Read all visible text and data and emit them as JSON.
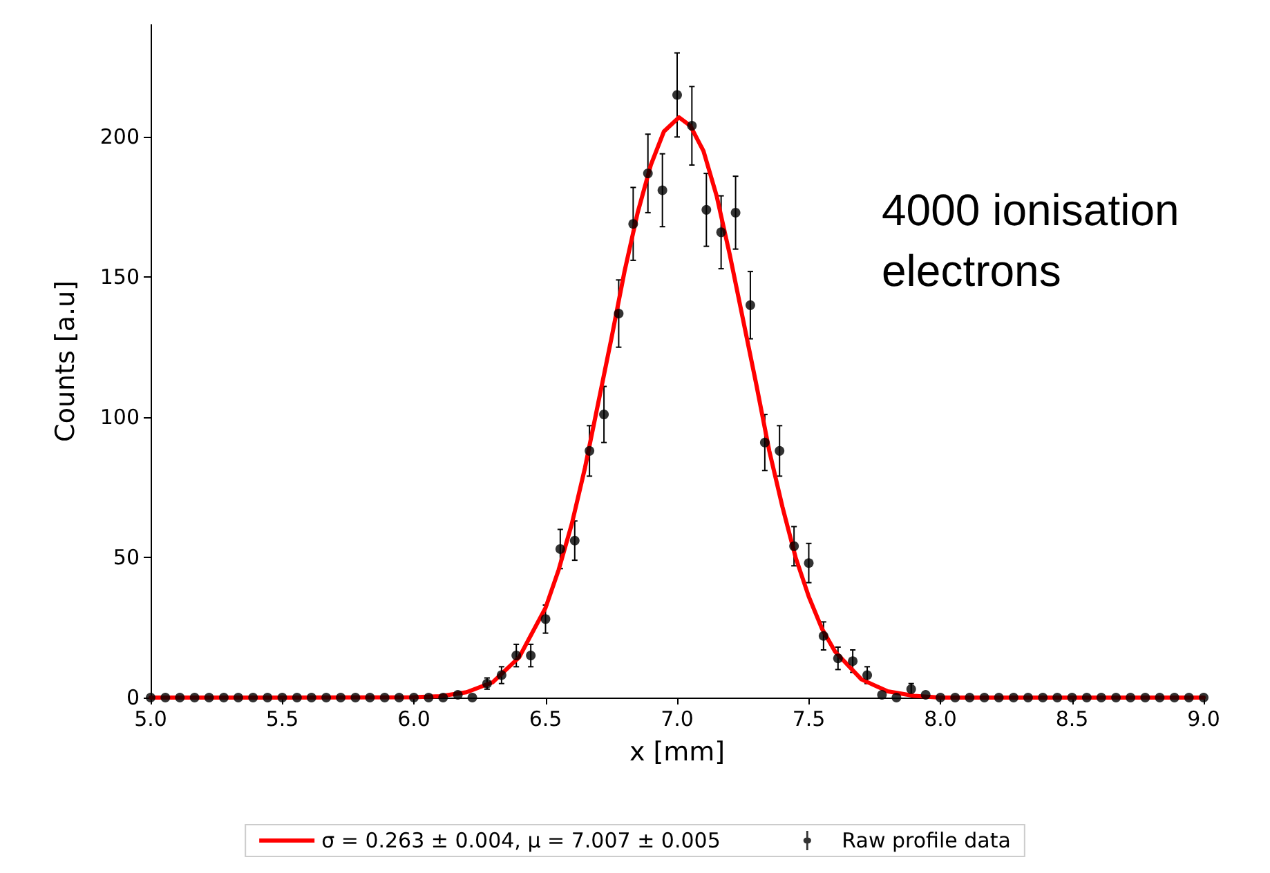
{
  "chart_data": {
    "type": "scatter",
    "xlabel": "x [mm]",
    "ylabel": "Counts [a.u]",
    "xlim": [
      5,
      9
    ],
    "xticks": [
      {
        "value": 5,
        "label": "5.0"
      },
      {
        "value": 5.5,
        "label": "5.5"
      },
      {
        "value": 6,
        "label": "6.0"
      },
      {
        "value": 6.5,
        "label": "6.5"
      },
      {
        "value": 7,
        "label": "7.0"
      },
      {
        "value": 7.5,
        "label": "7.5"
      },
      {
        "value": 8,
        "label": "8.0"
      },
      {
        "value": 8.5,
        "label": "8.5"
      },
      {
        "value": 9,
        "label": "9.0"
      }
    ],
    "ylim": [
      0,
      240
    ],
    "yticks": [
      0,
      50,
      100,
      150,
      200
    ],
    "grid": false,
    "legend": "bottom",
    "annotations": [
      "4000 ionisation\nelectrons"
    ],
    "series": [
      {
        "type": "line",
        "name": "σ = 0.263 ± 0.004, μ = 7.007 ± 0.005",
        "color": "#ff0000",
        "marker": "none",
        "line_style": "solid",
        "x": [
          5,
          5.5,
          6,
          6.1,
          6.2,
          6.3,
          6.4,
          6.5,
          6.55,
          6.6,
          6.65,
          6.7,
          6.75,
          6.8,
          6.85,
          6.9,
          6.95,
          7.007,
          7.05,
          7.1,
          7.15,
          7.2,
          7.25,
          7.3,
          7.35,
          7.4,
          7.45,
          7.5,
          7.55,
          7.6,
          7.7,
          7.8,
          7.9,
          8,
          8.5,
          9
        ],
        "values": [
          0,
          0,
          0.1,
          0.5,
          1.9,
          5.5,
          14.4,
          32,
          45.6,
          62,
          82,
          105,
          128,
          152,
          173,
          190,
          202,
          207,
          204,
          195,
          179,
          158,
          135,
          112,
          88,
          68,
          50,
          36,
          24.6,
          16.4,
          6.5,
          2.2,
          0.6,
          0,
          0,
          0
        ]
      },
      {
        "name": "Raw profile data",
        "color": "#000000",
        "marker": "circle",
        "x": [
          5,
          5.056,
          5.111,
          5.167,
          5.222,
          5.278,
          5.333,
          5.389,
          5.444,
          5.5,
          5.556,
          5.611,
          5.667,
          5.722,
          5.778,
          5.833,
          5.889,
          5.944,
          6,
          6.056,
          6.111,
          6.167,
          6.222,
          6.278,
          6.333,
          6.389,
          6.444,
          6.5,
          6.556,
          6.611,
          6.667,
          6.722,
          6.778,
          6.833,
          6.889,
          6.944,
          7,
          7.056,
          7.111,
          7.167,
          7.222,
          7.278,
          7.333,
          7.389,
          7.444,
          7.5,
          7.556,
          7.611,
          7.667,
          7.722,
          7.778,
          7.833,
          7.889,
          7.944,
          8,
          8.056,
          8.111,
          8.167,
          8.222,
          8.278,
          8.333,
          8.389,
          8.444,
          8.5,
          8.556,
          8.611,
          8.667,
          8.722,
          8.778,
          8.833,
          8.889,
          8.944,
          9
        ],
        "values": [
          0,
          0,
          0,
          0,
          0,
          0,
          0,
          0,
          0,
          0,
          0,
          0,
          0,
          0,
          0,
          0,
          0,
          0,
          0,
          0,
          0,
          1,
          0,
          5,
          8,
          15,
          15,
          28,
          53,
          56,
          88,
          101,
          137,
          169,
          187,
          181,
          215,
          204,
          174,
          166,
          173,
          140,
          91,
          88,
          54,
          48,
          22,
          14,
          13,
          8,
          1,
          0,
          3,
          1,
          0,
          0,
          0,
          0,
          0,
          0,
          0,
          0,
          0,
          0,
          0,
          0,
          0,
          0,
          0,
          0,
          0,
          0,
          0
        ],
        "errors": [
          null,
          null,
          null,
          null,
          null,
          null,
          null,
          null,
          null,
          null,
          null,
          null,
          null,
          null,
          null,
          null,
          null,
          null,
          null,
          null,
          null,
          null,
          null,
          2,
          3,
          4,
          4,
          5,
          7,
          7,
          9,
          10,
          12,
          13,
          14,
          13,
          15,
          14,
          13,
          13,
          13,
          12,
          10,
          9,
          7,
          7,
          5,
          4,
          4,
          3,
          null,
          null,
          2,
          null,
          null,
          null,
          null,
          null,
          null,
          null,
          null,
          null,
          null,
          null,
          null,
          null,
          null,
          null,
          null,
          null,
          null,
          null,
          null
        ]
      }
    ]
  }
}
